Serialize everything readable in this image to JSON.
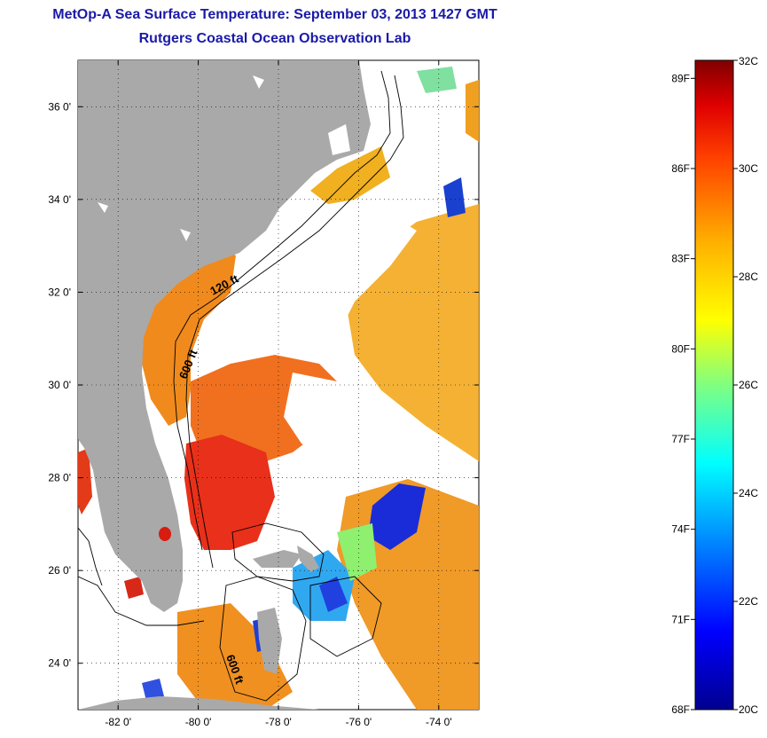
{
  "title": {
    "line1": "MetOp-A Sea Surface Temperature:  September 03, 2013 1427 GMT",
    "line2": "Rutgers Coastal Ocean Observation Lab"
  },
  "map": {
    "lat_ticks": [
      {
        "value": 36,
        "label": "36 0'"
      },
      {
        "value": 34,
        "label": "34 0'"
      },
      {
        "value": 32,
        "label": "32 0'"
      },
      {
        "value": 30,
        "label": "30 0'"
      },
      {
        "value": 28,
        "label": "28 0'"
      },
      {
        "value": 26,
        "label": "26 0'"
      },
      {
        "value": 24,
        "label": "24 0'"
      }
    ],
    "lon_ticks": [
      {
        "value": -82,
        "label": "-82 0'"
      },
      {
        "value": -80,
        "label": "-80 0'"
      },
      {
        "value": -78,
        "label": "-78 0'"
      },
      {
        "value": -76,
        "label": "-76 0'"
      },
      {
        "value": -74,
        "label": "-74 0'"
      }
    ],
    "lon_range": [
      -83,
      -73
    ],
    "lat_range": [
      23,
      37
    ],
    "isobath_labels": [
      {
        "text": "120 ft"
      },
      {
        "text": "600 ft"
      },
      {
        "text": "600 ft"
      }
    ],
    "land_color": "#a9a9a9",
    "cloud_color": "#ffffff"
  },
  "colorbar": {
    "range_c": [
      20,
      32
    ],
    "celsius_labels": [
      {
        "value": 32,
        "label": "32C"
      },
      {
        "value": 30,
        "label": "30C"
      },
      {
        "value": 28,
        "label": "28C"
      },
      {
        "value": 26,
        "label": "26C"
      },
      {
        "value": 24,
        "label": "24C"
      },
      {
        "value": 22,
        "label": "22C"
      },
      {
        "value": 20,
        "label": "20C"
      }
    ],
    "fahrenheit_labels": [
      {
        "value": 89,
        "label": "89F"
      },
      {
        "value": 86,
        "label": "86F"
      },
      {
        "value": 83,
        "label": "83F"
      },
      {
        "value": 80,
        "label": "80F"
      },
      {
        "value": 77,
        "label": "77F"
      },
      {
        "value": 74,
        "label": "74F"
      },
      {
        "value": 71,
        "label": "71F"
      },
      {
        "value": 68,
        "label": "68F"
      }
    ]
  }
}
